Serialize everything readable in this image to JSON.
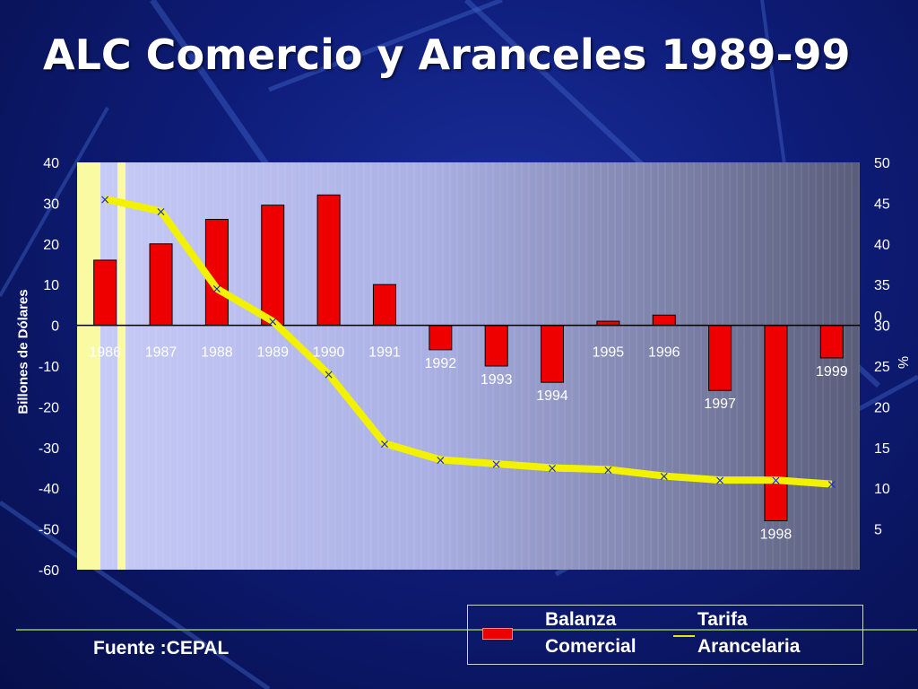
{
  "slide": {
    "title": "ALC Comercio y Aranceles 1989-99",
    "source": "Fuente :CEPAL"
  },
  "legend": {
    "balanza_line1": "Balanza",
    "balanza_line2": "Comercial",
    "tarifa_line1": "Tarifa",
    "tarifa_line2": "Arancelaria"
  },
  "chart_data": {
    "type": "bar",
    "categories": [
      "1986",
      "1987",
      "1988",
      "1989",
      "1990",
      "1991",
      "1992",
      "1993",
      "1994",
      "1995",
      "1996",
      "1997",
      "1998",
      "1999"
    ],
    "ylabel": "Billones de Dólares",
    "y2label": "%",
    "ylim": [
      -60,
      40
    ],
    "y2lim": [
      0,
      50
    ],
    "yticks": [
      40,
      30,
      20,
      10,
      0,
      -10,
      -20,
      -30,
      -40,
      -50,
      -60
    ],
    "y2ticks": [
      50,
      45,
      40,
      35,
      30,
      25,
      20,
      15,
      10,
      5
    ],
    "y2_zero_label": "0",
    "colors": {
      "bars": "#ee0000",
      "tariff_line": "#f2f200",
      "markers": "#1f2fd0"
    },
    "series": [
      {
        "name": "Balanza Comercial",
        "type": "bar",
        "axis": "left",
        "values": [
          16,
          20,
          26,
          29.5,
          32,
          10,
          -6,
          -10,
          -14,
          1,
          2.5,
          -16,
          -48,
          -8
        ]
      },
      {
        "name": "Tarifa Arancelaria",
        "type": "line",
        "axis": "right",
        "values": [
          45.5,
          44,
          34.5,
          30.5,
          24,
          15.5,
          13.5,
          13,
          12.5,
          12.3,
          11.5,
          11,
          11,
          10.5
        ]
      }
    ]
  }
}
